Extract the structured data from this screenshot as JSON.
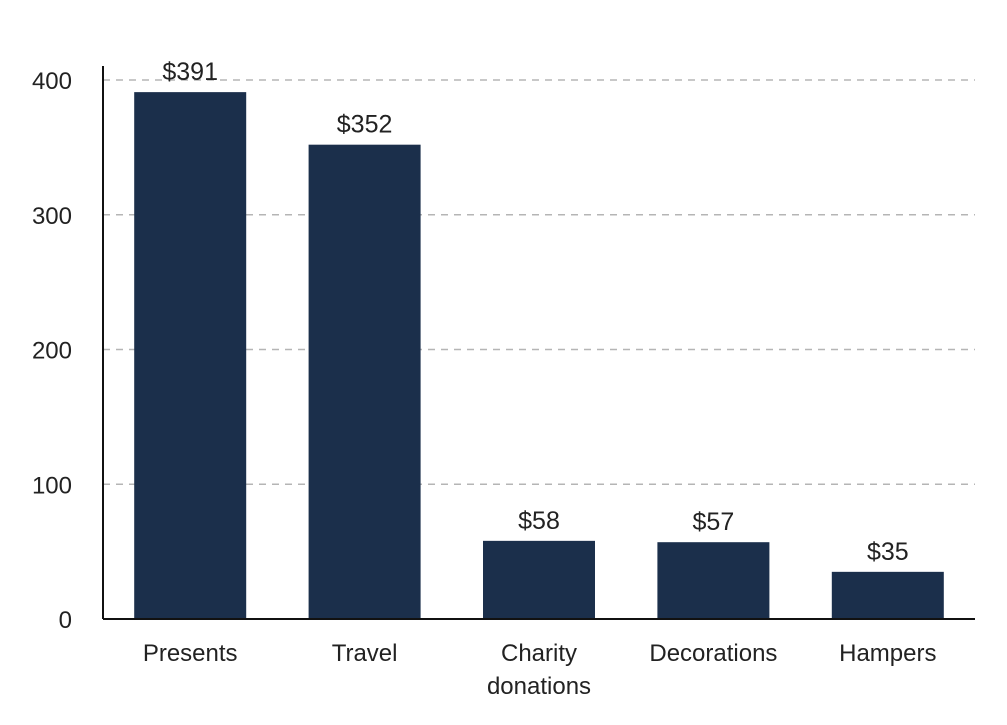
{
  "chart_data": {
    "type": "bar",
    "title": "",
    "xlabel": "",
    "ylabel": "",
    "categories": [
      "Presents",
      "Travel",
      "Charity donations",
      "Decorations",
      "Hampers"
    ],
    "category_lines": [
      [
        "Presents"
      ],
      [
        "Travel"
      ],
      [
        "Charity",
        "donations"
      ],
      [
        "Decorations"
      ],
      [
        "Hampers"
      ]
    ],
    "values": [
      391,
      352,
      58,
      57,
      35
    ],
    "data_labels": [
      "$391",
      "$352",
      "$58",
      "$57",
      "$35"
    ],
    "ylim": [
      0,
      400
    ],
    "yticks": [
      0,
      100,
      200,
      300,
      400
    ],
    "ytick_labels": [
      "0",
      "100",
      "200",
      "300",
      "400"
    ],
    "grid": true,
    "legend": "none",
    "bar_color": "#1b2f4b",
    "grid_color": "#b5b5b5"
  }
}
